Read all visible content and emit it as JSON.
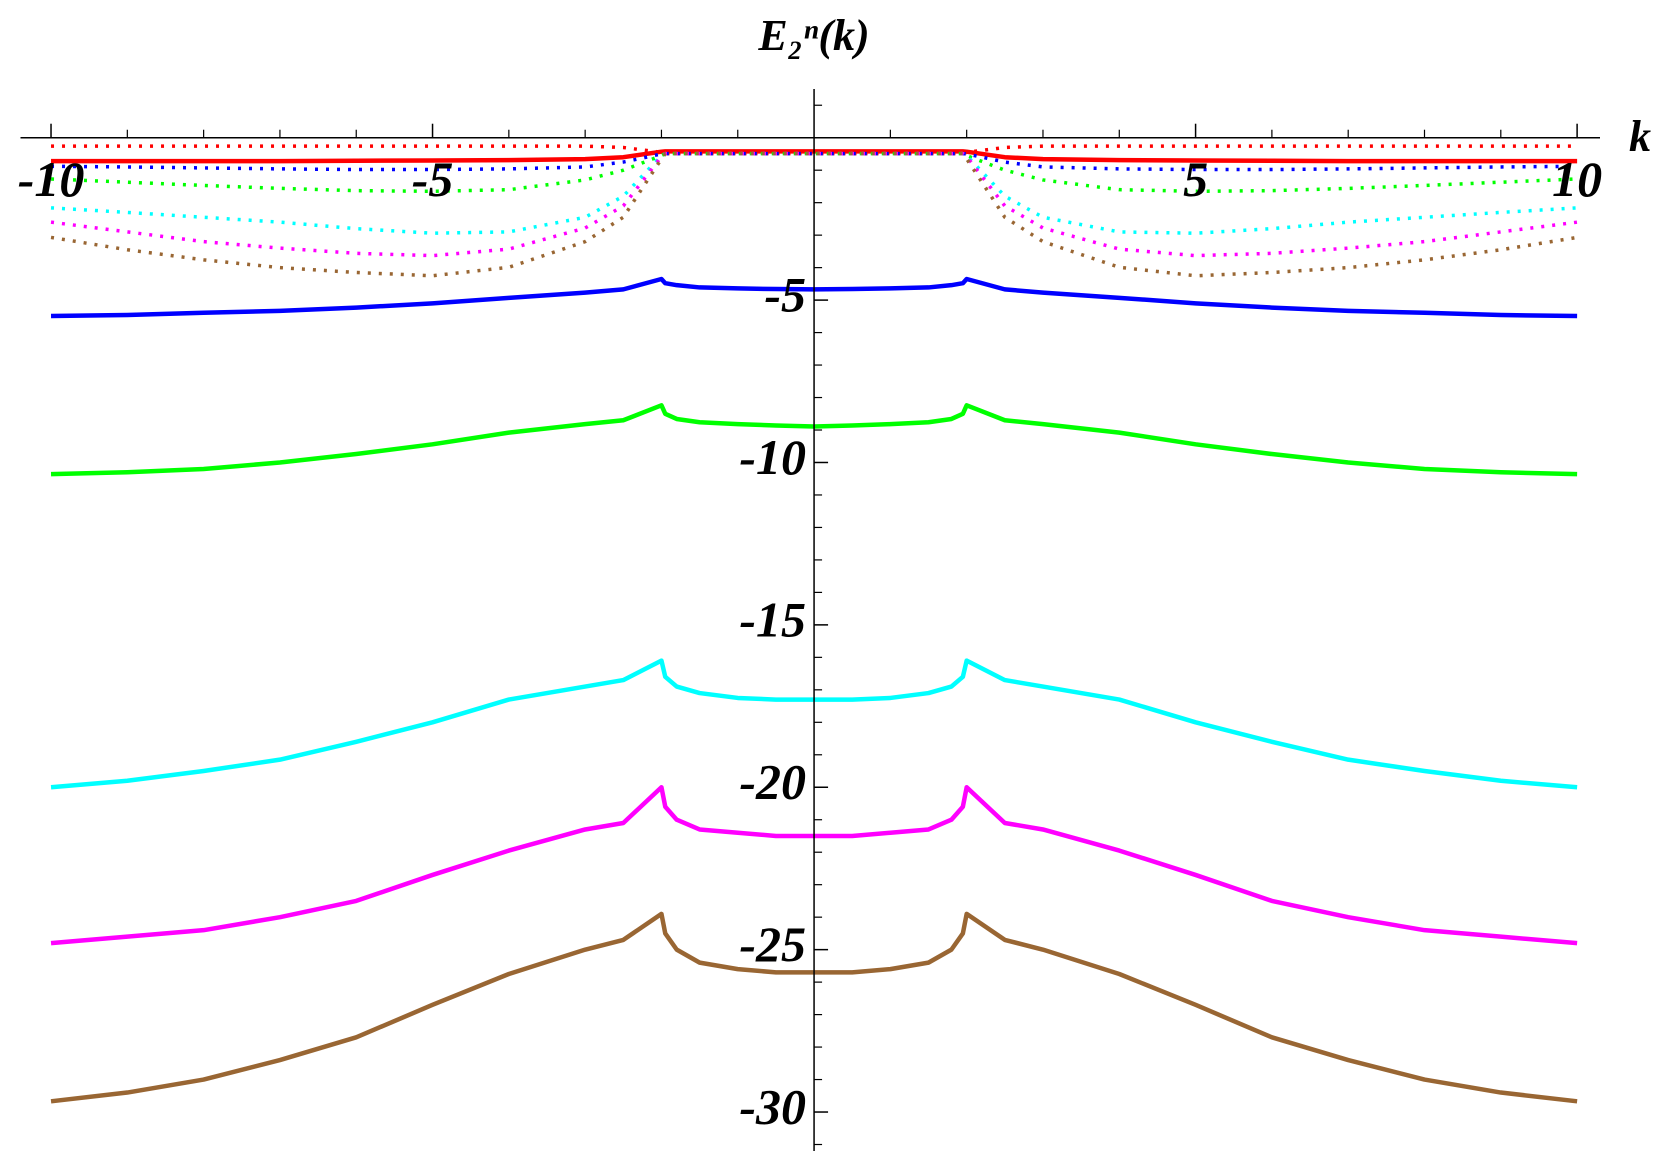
{
  "chart_data": {
    "type": "line",
    "title": "E₂ⁿ(k)",
    "x_label": "k",
    "x": [
      -10,
      -9,
      -8,
      -7,
      -6,
      -5,
      -4,
      -3,
      -2.5,
      -2,
      -1.95,
      -1.8,
      -1.5,
      -1,
      -0.5,
      0,
      0.5,
      1,
      1.5,
      1.8,
      1.95,
      2,
      2.5,
      3,
      4,
      5,
      6,
      7,
      8,
      9,
      10
    ],
    "xlim": [
      -10.4,
      10.3
    ],
    "ylim": [
      -31.2,
      1.5
    ],
    "xticks": [
      -10,
      -5,
      5,
      10
    ],
    "yticks": [
      -5,
      -10,
      -15,
      -20,
      -25,
      -30
    ],
    "xminorticks": [
      -9,
      -8,
      -7,
      -6,
      -4,
      -3,
      -2,
      -1,
      1,
      2,
      3,
      4,
      6,
      7,
      8,
      9
    ],
    "yminorticks": [
      1,
      -1,
      -2,
      -3,
      -4,
      -6,
      -7,
      -8,
      -9,
      -11,
      -12,
      -13,
      -14,
      -16,
      -17,
      -18,
      -19,
      -21,
      -22,
      -23,
      -24,
      -26,
      -27,
      -28,
      -29,
      -31
    ],
    "series": [
      {
        "color": "#ff0000",
        "style": "solid",
        "values": [
          -0.72,
          -0.72,
          -0.72,
          -0.72,
          -0.71,
          -0.7,
          -0.69,
          -0.66,
          -0.6,
          -0.43,
          -0.42,
          -0.42,
          -0.42,
          -0.42,
          -0.42,
          -0.42,
          -0.42,
          -0.42,
          -0.42,
          -0.42,
          -0.42,
          -0.43,
          -0.6,
          -0.66,
          -0.69,
          -0.7,
          -0.71,
          -0.72,
          -0.72,
          -0.72,
          -0.72
        ]
      },
      {
        "color": "#0000ff",
        "style": "solid",
        "values": [
          -5.49,
          -5.46,
          -5.39,
          -5.33,
          -5.23,
          -5.1,
          -4.93,
          -4.77,
          -4.67,
          -4.35,
          -4.48,
          -4.54,
          -4.61,
          -4.64,
          -4.66,
          -4.67,
          -4.66,
          -4.64,
          -4.61,
          -4.54,
          -4.48,
          -4.35,
          -4.67,
          -4.77,
          -4.93,
          -5.1,
          -5.23,
          -5.33,
          -5.39,
          -5.46,
          -5.49
        ]
      },
      {
        "color": "#00ff00",
        "style": "solid",
        "values": [
          -10.36,
          -10.3,
          -10.2,
          -10.0,
          -9.74,
          -9.44,
          -9.08,
          -8.82,
          -8.7,
          -8.24,
          -8.5,
          -8.66,
          -8.76,
          -8.82,
          -8.86,
          -8.89,
          -8.86,
          -8.82,
          -8.76,
          -8.66,
          -8.5,
          -8.24,
          -8.7,
          -8.82,
          -9.08,
          -9.44,
          -9.74,
          -10.0,
          -10.2,
          -10.3,
          -10.36
        ]
      },
      {
        "color": "#00ffff",
        "style": "solid",
        "values": [
          -20.0,
          -19.8,
          -19.5,
          -19.15,
          -18.6,
          -18.0,
          -17.3,
          -16.9,
          -16.7,
          -16.1,
          -16.6,
          -16.9,
          -17.1,
          -17.25,
          -17.3,
          -17.3,
          -17.3,
          -17.25,
          -17.1,
          -16.9,
          -16.6,
          -16.1,
          -16.7,
          -16.9,
          -17.3,
          -18.0,
          -18.6,
          -19.15,
          -19.5,
          -19.8,
          -20.0
        ]
      },
      {
        "color": "#ff00ff",
        "style": "solid",
        "values": [
          -24.8,
          -24.6,
          -24.4,
          -24.0,
          -23.5,
          -22.7,
          -21.95,
          -21.3,
          -21.1,
          -20.0,
          -20.6,
          -21.0,
          -21.3,
          -21.4,
          -21.5,
          -21.5,
          -21.5,
          -21.4,
          -21.3,
          -21.0,
          -20.6,
          -20.0,
          -21.1,
          -21.3,
          -21.95,
          -22.7,
          -23.5,
          -24.0,
          -24.4,
          -24.6,
          -24.8
        ]
      },
      {
        "color": "#996633",
        "style": "solid",
        "values": [
          -29.67,
          -29.4,
          -29.0,
          -28.4,
          -27.7,
          -26.7,
          -25.75,
          -25.0,
          -24.7,
          -23.9,
          -24.5,
          -25.0,
          -25.4,
          -25.6,
          -25.7,
          -25.7,
          -25.7,
          -25.6,
          -25.4,
          -25.0,
          -24.5,
          -23.9,
          -24.7,
          -25.0,
          -25.75,
          -26.7,
          -27.7,
          -28.4,
          -29.0,
          -29.4,
          -29.67
        ]
      },
      {
        "color": "#ff0000",
        "style": "dotted",
        "values": [
          -0.26,
          -0.26,
          -0.26,
          -0.26,
          -0.26,
          -0.26,
          -0.26,
          -0.26,
          -0.3,
          -0.45,
          -0.49,
          -0.49,
          -0.49,
          -0.49,
          -0.49,
          -0.49,
          -0.49,
          -0.49,
          -0.49,
          -0.49,
          -0.49,
          -0.45,
          -0.3,
          -0.26,
          -0.26,
          -0.26,
          -0.26,
          -0.26,
          -0.26,
          -0.26,
          -0.26
        ]
      },
      {
        "color": "#0000ff",
        "style": "dotted",
        "values": [
          -0.88,
          -0.9,
          -0.93,
          -0.96,
          -0.98,
          -0.98,
          -0.96,
          -0.9,
          -0.75,
          -0.5,
          -0.49,
          -0.49,
          -0.49,
          -0.49,
          -0.49,
          -0.49,
          -0.49,
          -0.49,
          -0.49,
          -0.49,
          -0.49,
          -0.5,
          -0.75,
          -0.9,
          -0.96,
          -0.98,
          -0.98,
          -0.96,
          -0.93,
          -0.9,
          -0.88
        ]
      },
      {
        "color": "#00ff00",
        "style": "dotted",
        "values": [
          -1.27,
          -1.37,
          -1.47,
          -1.56,
          -1.63,
          -1.65,
          -1.6,
          -1.3,
          -1.0,
          -0.55,
          -0.49,
          -0.49,
          -0.49,
          -0.49,
          -0.49,
          -0.49,
          -0.49,
          -0.49,
          -0.49,
          -0.49,
          -0.49,
          -0.55,
          -1.0,
          -1.3,
          -1.6,
          -1.65,
          -1.63,
          -1.56,
          -1.47,
          -1.37,
          -1.27
        ]
      },
      {
        "color": "#00ffff",
        "style": "dotted",
        "values": [
          -2.16,
          -2.3,
          -2.45,
          -2.6,
          -2.8,
          -2.94,
          -2.9,
          -2.45,
          -1.8,
          -0.55,
          -0.49,
          -0.49,
          -0.49,
          -0.49,
          -0.49,
          -0.49,
          -0.49,
          -0.49,
          -0.49,
          -0.49,
          -0.49,
          -0.55,
          -1.8,
          -2.45,
          -2.9,
          -2.94,
          -2.8,
          -2.6,
          -2.45,
          -2.3,
          -2.16
        ]
      },
      {
        "color": "#ff00ff",
        "style": "dotted",
        "values": [
          -2.6,
          -2.9,
          -3.2,
          -3.4,
          -3.56,
          -3.63,
          -3.43,
          -2.78,
          -2.1,
          -0.58,
          -0.49,
          -0.49,
          -0.49,
          -0.49,
          -0.49,
          -0.49,
          -0.49,
          -0.49,
          -0.49,
          -0.49,
          -0.49,
          -0.58,
          -2.1,
          -2.78,
          -3.43,
          -3.63,
          -3.56,
          -3.4,
          -3.2,
          -2.9,
          -2.6
        ]
      },
      {
        "color": "#996633",
        "style": "dotted",
        "values": [
          -3.07,
          -3.45,
          -3.76,
          -4.0,
          -4.15,
          -4.25,
          -3.99,
          -3.2,
          -2.45,
          -0.65,
          -0.49,
          -0.49,
          -0.49,
          -0.49,
          -0.49,
          -0.49,
          -0.49,
          -0.49,
          -0.49,
          -0.49,
          -0.49,
          -0.65,
          -2.45,
          -3.2,
          -3.99,
          -4.25,
          -4.15,
          -4.0,
          -3.76,
          -3.45,
          -3.07
        ]
      }
    ]
  }
}
